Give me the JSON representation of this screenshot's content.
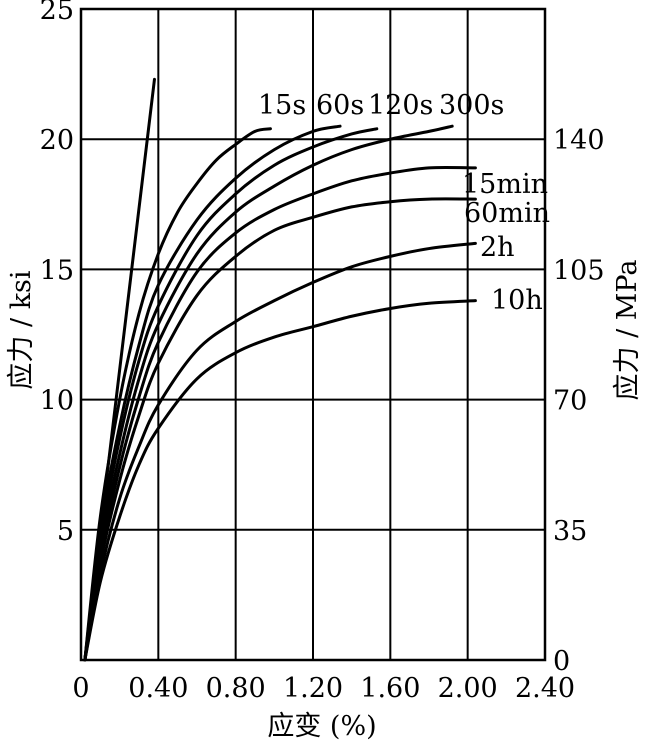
{
  "chart_data": {
    "type": "line",
    "xlabel": "应变 (%)",
    "ylabel_left": "应力 / ksi",
    "ylabel_right": "应力 / MPa",
    "xlim": [
      0,
      2.4
    ],
    "ylim": [
      0,
      25
    ],
    "x_tick_labels": [
      "0",
      "0.40",
      "0.80",
      "1.20",
      "1.60",
      "2.00",
      "2.40"
    ],
    "x_tick_values": [
      0,
      0.4,
      0.8,
      1.2,
      1.6,
      2.0,
      2.4
    ],
    "y_left_tick_labels": [
      "5",
      "10",
      "15",
      "20",
      "25"
    ],
    "y_left_tick_values": [
      5,
      10,
      15,
      20,
      25
    ],
    "y_right_tick_labels": [
      "0",
      "35",
      "70",
      "105",
      "140"
    ],
    "y_right_tick_values_ksi": [
      0,
      5,
      10,
      15,
      20
    ],
    "grid": true,
    "line_color": "#000000",
    "series": [
      {
        "name": "",
        "x": [
          0.02,
          0.38
        ],
        "y": [
          0,
          22.3
        ]
      },
      {
        "name": "15s",
        "x": [
          0.02,
          0.1,
          0.2,
          0.3,
          0.4,
          0.5,
          0.6,
          0.7,
          0.8,
          0.9,
          0.98
        ],
        "y": [
          0,
          5.5,
          10.0,
          13.3,
          15.6,
          17.2,
          18.3,
          19.2,
          19.8,
          20.3,
          20.4
        ]
      },
      {
        "name": "60s",
        "x": [
          0.02,
          0.1,
          0.2,
          0.3,
          0.4,
          0.6,
          0.8,
          1.0,
          1.2,
          1.34
        ],
        "y": [
          0,
          5.0,
          9.0,
          12.1,
          14.4,
          16.9,
          18.5,
          19.6,
          20.3,
          20.5
        ]
      },
      {
        "name": "120s",
        "x": [
          0.02,
          0.1,
          0.2,
          0.3,
          0.4,
          0.6,
          0.8,
          1.0,
          1.2,
          1.4,
          1.53
        ],
        "y": [
          0,
          4.6,
          8.5,
          11.5,
          13.6,
          16.3,
          17.9,
          19.0,
          19.7,
          20.2,
          20.4
        ]
      },
      {
        "name": "300s",
        "x": [
          0.02,
          0.1,
          0.2,
          0.3,
          0.4,
          0.6,
          0.8,
          1.0,
          1.2,
          1.4,
          1.6,
          1.8,
          1.92
        ],
        "y": [
          0,
          4.3,
          7.9,
          10.8,
          12.9,
          15.6,
          17.2,
          18.2,
          19.0,
          19.6,
          20.0,
          20.3,
          20.5
        ]
      },
      {
        "name": "15min",
        "x": [
          0.02,
          0.1,
          0.2,
          0.3,
          0.4,
          0.6,
          0.8,
          1.0,
          1.2,
          1.4,
          1.6,
          1.8,
          2.04
        ],
        "y": [
          0,
          4.0,
          7.4,
          10.1,
          12.2,
          14.9,
          16.4,
          17.3,
          17.9,
          18.4,
          18.7,
          18.9,
          18.9
        ]
      },
      {
        "name": "60min",
        "x": [
          0.02,
          0.1,
          0.2,
          0.3,
          0.4,
          0.6,
          0.8,
          1.0,
          1.2,
          1.4,
          1.6,
          1.8,
          2.04
        ],
        "y": [
          0,
          3.7,
          6.9,
          9.4,
          11.4,
          14.0,
          15.5,
          16.5,
          17.0,
          17.4,
          17.6,
          17.7,
          17.7
        ]
      },
      {
        "name": "2h",
        "x": [
          0.02,
          0.1,
          0.2,
          0.3,
          0.4,
          0.6,
          0.8,
          1.0,
          1.2,
          1.4,
          1.6,
          1.8,
          2.04
        ],
        "y": [
          0,
          3.3,
          6.2,
          8.2,
          9.8,
          11.9,
          13.0,
          13.8,
          14.5,
          15.1,
          15.5,
          15.8,
          16.0
        ]
      },
      {
        "name": "10h",
        "x": [
          0.02,
          0.1,
          0.2,
          0.3,
          0.4,
          0.6,
          0.8,
          1.0,
          1.2,
          1.4,
          1.6,
          1.8,
          2.04
        ],
        "y": [
          0,
          3.0,
          5.5,
          7.5,
          8.9,
          10.8,
          11.8,
          12.4,
          12.8,
          13.2,
          13.5,
          13.7,
          13.8
        ]
      }
    ]
  }
}
